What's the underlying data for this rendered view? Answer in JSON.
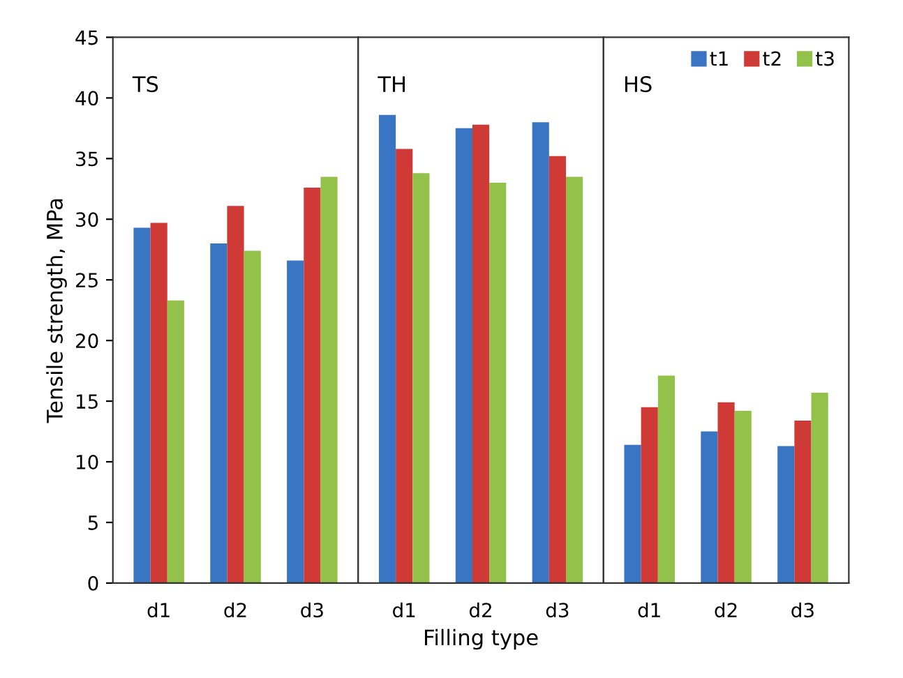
{
  "chart_data": [
    {
      "type": "bar",
      "categories": [
        "d1",
        "d2",
        "d3"
      ],
      "ylabel": "Tensile strength, MPa",
      "ylim": [
        0,
        45
      ],
      "yticks": [
        0,
        5,
        10,
        15,
        20,
        25,
        30,
        35,
        40,
        45
      ],
      "annotations": [
        "TS"
      ],
      "legend": false,
      "series": [
        {
          "color": "#3a75c4",
          "values": [
            29.3,
            28.0,
            26.6
          ]
        },
        {
          "color": "#d03a36",
          "values": [
            29.7,
            31.1,
            32.6
          ]
        },
        {
          "color": "#92c24a",
          "values": [
            23.3,
            27.4,
            33.5
          ]
        }
      ]
    },
    {
      "type": "bar",
      "categories": [
        "d1",
        "d2",
        "d3"
      ],
      "xlabel": "Filling type",
      "ylim": [
        0,
        45
      ],
      "tick_labels": "x",
      "annotations": [
        "TH"
      ],
      "legend": false,
      "series": [
        {
          "color": "#3a75c4",
          "values": [
            38.6,
            37.5,
            38.0
          ]
        },
        {
          "color": "#d03a36",
          "values": [
            35.8,
            37.8,
            35.2
          ]
        },
        {
          "color": "#92c24a",
          "values": [
            33.8,
            33.0,
            33.5
          ]
        }
      ]
    },
    {
      "type": "bar",
      "categories": [
        "d1",
        "d2",
        "d3"
      ],
      "ylim": [
        0,
        45
      ],
      "tick_labels": "x",
      "annotations": [
        "HS"
      ],
      "legend": "top right",
      "series": [
        {
          "name": "t1",
          "color": "#3a75c4",
          "values": [
            11.4,
            12.5,
            11.3
          ]
        },
        {
          "name": "t2",
          "color": "#d03a36",
          "values": [
            14.5,
            14.9,
            13.4
          ]
        },
        {
          "name": "t3",
          "color": "#92c24a",
          "values": [
            17.1,
            14.2,
            15.7
          ]
        }
      ]
    }
  ]
}
